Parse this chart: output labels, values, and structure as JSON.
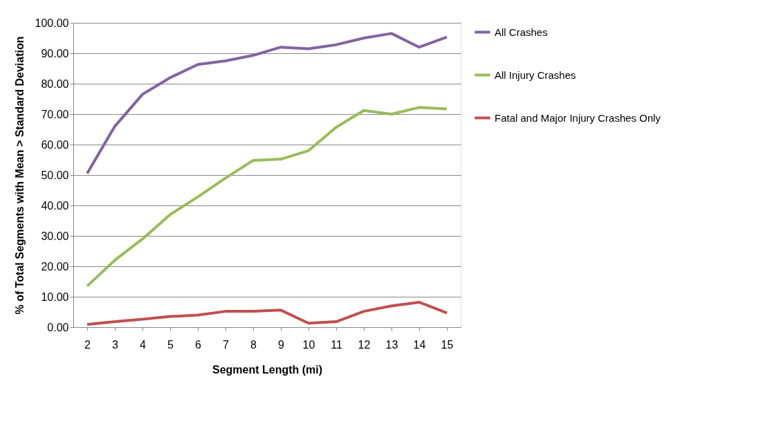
{
  "chart_data": {
    "type": "line",
    "xlabel": "Segment Length (mi)",
    "ylabel": "% of Total Segments with Mean > Standard Deviation",
    "categories": [
      "2",
      "3",
      "4",
      "5",
      "6",
      "7",
      "8",
      "9",
      "10",
      "11",
      "12",
      "13",
      "14",
      "15"
    ],
    "series": [
      {
        "name": "All Crashes",
        "color": "#8064a2",
        "values": [
          50.5,
          66,
          76.5,
          82,
          86.3,
          87.5,
          89.3,
          92,
          91.5,
          92.8,
          95,
          96.5,
          92,
          95.3
        ]
      },
      {
        "name": "All Injury Crashes",
        "color": "#9bbb59",
        "values": [
          13.5,
          22,
          29,
          37,
          42.8,
          49,
          54.8,
          55.2,
          58,
          65.7,
          71.2,
          70,
          72.2,
          71.7
        ]
      },
      {
        "name": "Fatal and Major Injury Crashes Only",
        "color": "#c0504d",
        "values": [
          0.9,
          1.8,
          2.6,
          3.5,
          4,
          5.2,
          5.2,
          5.6,
          1.3,
          1.8,
          5.2,
          7,
          8.2,
          4.7
        ]
      }
    ],
    "ylim": [
      0,
      100
    ],
    "yticks": [
      {
        "value": 0,
        "label": "0.00"
      },
      {
        "value": 10,
        "label": "10.00"
      },
      {
        "value": 20,
        "label": "20.00"
      },
      {
        "value": 30,
        "label": "30.00"
      },
      {
        "value": 40,
        "label": "40.00"
      },
      {
        "value": 50,
        "label": "50.00"
      },
      {
        "value": 60,
        "label": "60.00"
      },
      {
        "value": 70,
        "label": "70.00"
      },
      {
        "value": 80,
        "label": "80.00"
      },
      {
        "value": 90,
        "label": "90.00"
      },
      {
        "value": 100,
        "label": "100.00"
      }
    ],
    "grid": "y",
    "legend": "right",
    "marker": "none",
    "line_style": "solid"
  }
}
